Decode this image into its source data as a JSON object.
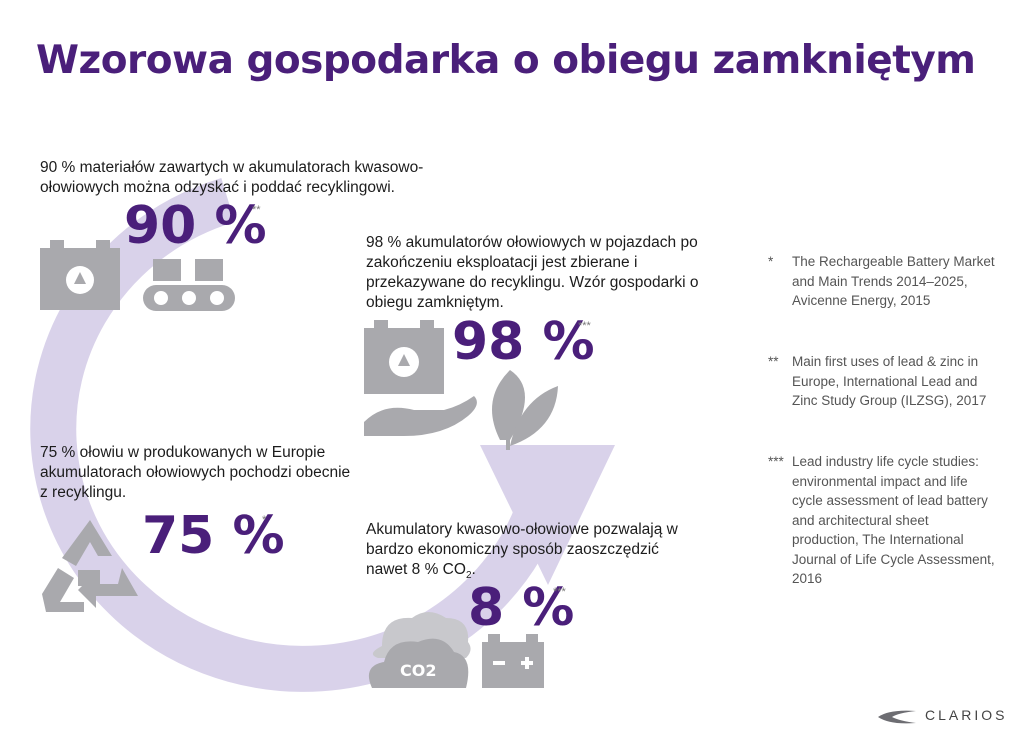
{
  "title": "Wzorowa gospodarka o obiegu zamkniętym",
  "stats": [
    {
      "text": "90 % materiałów zawartych w akumulatorach kwasowo-ołowiowych można odzyskać i poddać recyklingowi.",
      "value": "90 %",
      "note": "**"
    },
    {
      "text": "98 % akumulatorów ołowiowych w pojazdach po zakończeniu eksploatacji jest zbierane i przekazywane do recyklingu. Wzór gospodarki o obiegu zamkniętym.",
      "value": "98 %",
      "note": "***"
    },
    {
      "text": "75 % ołowiu w produkowanych w Europie akumulatorach ołowiowych pochodzi obecnie z recyklingu.",
      "value": "75 %",
      "note": "*"
    },
    {
      "text_main": "Akumulatory kwasowo-ołowiowe pozwalają w bardzo ekonomiczny sposób zaoszczędzić nawet 8 % CO",
      "text_sub": "2",
      "text_end": ".",
      "value": "8 %",
      "note": "***",
      "cloud_label": "CO2"
    }
  ],
  "footnotes": [
    {
      "mark": "*",
      "text": "The Rechargeable Battery Market and Main Trends 2014–2025, Avicenne Energy, 2015"
    },
    {
      "mark": "**",
      "text": "Main first uses of lead & zinc in Europe, International Lead and Zinc Study Group (ILZSG), 2017"
    },
    {
      "mark": "***",
      "text": "Lead industry life cycle studies: environmental impact and life cycle assessment of lead battery and architectural sheet production, The International Journal of Life Cycle Assessment, 2016"
    }
  ],
  "brand": "CLARIOS",
  "colors": {
    "accent": "#4a1f7a",
    "loop": "#d9d2ea",
    "icon": "#a9a9ad",
    "text": "#1c1c1c"
  },
  "icons": [
    "recycle-battery-icon",
    "conveyor-batteries-icon",
    "hand-icon",
    "leaf-icon",
    "recycle-arrows-icon",
    "co2-cloud-icon",
    "battery-icon",
    "clarios-logo-icon"
  ]
}
